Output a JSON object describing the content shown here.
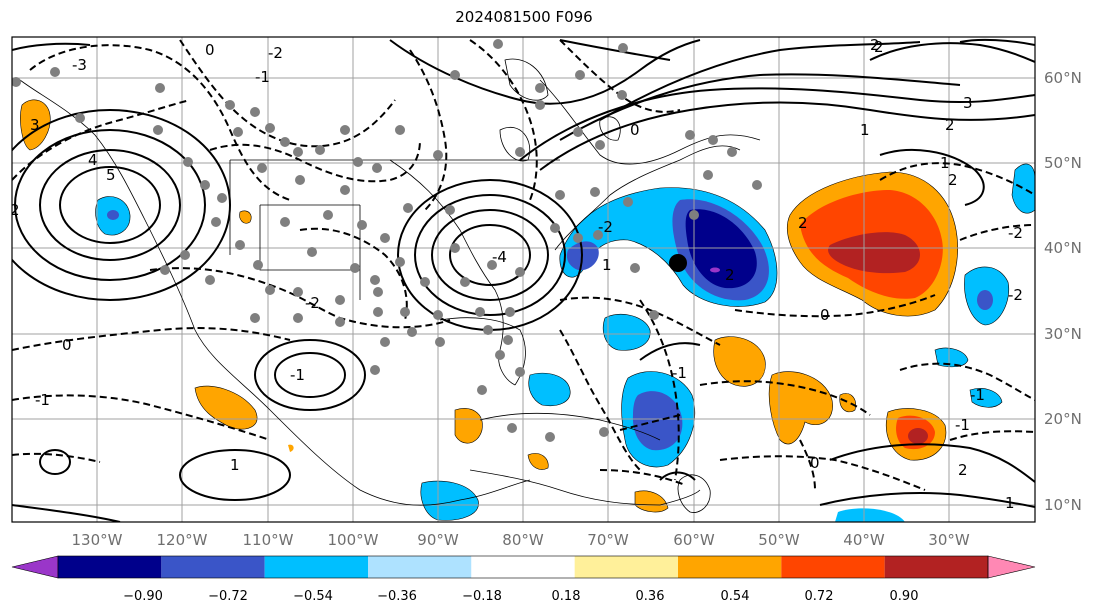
{
  "title": "2024081500 F096",
  "latitude_labels": [
    "60°N",
    "50°N",
    "40°N",
    "30°N",
    "20°N",
    "10°N"
  ],
  "longitude_labels": [
    "130°W",
    "120°W",
    "110°W",
    "100°W",
    "90°W",
    "80°W",
    "70°W",
    "60°W",
    "50°W",
    "40°W",
    "30°W"
  ],
  "colorbar": {
    "ticks": [
      "−0.90",
      "−0.72",
      "−0.54",
      "−0.36",
      "−0.18",
      "0.18",
      "0.36",
      "0.54",
      "0.72",
      "0.90"
    ],
    "colors": [
      "#9a36c9",
      "#00008b",
      "#3a55c8",
      "#00bfff",
      "#aee2ff",
      "#ffffff",
      "#fff09a",
      "#ffa500",
      "#ff4500",
      "#b22222",
      "#ff88b4"
    ]
  },
  "contour_labels": [
    "-3",
    "0",
    "-2",
    "-1",
    "2",
    "3",
    "4",
    "5",
    "-4",
    "1",
    "2",
    "1",
    "3",
    "2",
    "-1",
    "-2",
    "-1",
    "0",
    "-2",
    "1",
    "0",
    "-1",
    "0",
    "1",
    "2",
    "-1",
    "2",
    "-2",
    "0",
    "-1",
    "2",
    "2",
    "1",
    "-2",
    "2"
  ],
  "colors": {
    "axis_text": "#6f6f6f",
    "frame": "#000000",
    "grid": "#a0a0a0"
  }
}
